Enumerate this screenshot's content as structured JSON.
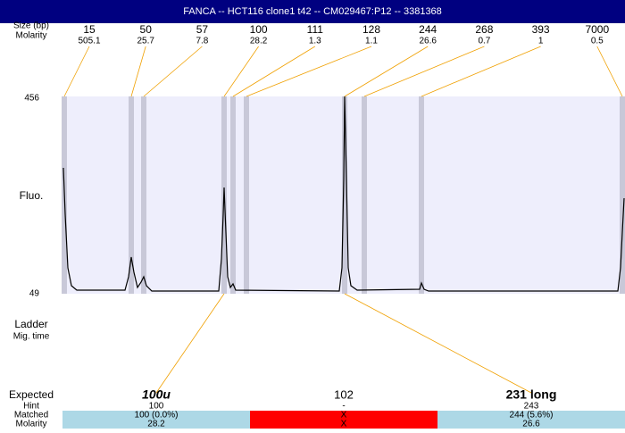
{
  "header": {
    "title": "FANCA -- HCT116 clone1 t42 -- CM029467:P12 -- 3381368"
  },
  "row_labels": {
    "size": "Size (bp)",
    "molarity": "Molarity",
    "fluo": "Fluo.",
    "ladder": "Ladder",
    "mig_time": "Mig. time"
  },
  "y_axis": {
    "top": "456",
    "bottom": "49"
  },
  "peaks": [
    {
      "size": "15",
      "molarity": "505.1"
    },
    {
      "size": "50",
      "molarity": "25.7"
    },
    {
      "size": "57",
      "molarity": "7.8"
    },
    {
      "size": "100",
      "molarity": "28.2"
    },
    {
      "size": "111",
      "molarity": "1.3"
    },
    {
      "size": "128",
      "molarity": "1.1"
    },
    {
      "size": "244",
      "molarity": "26.6"
    },
    {
      "size": "268",
      "molarity": "0.7"
    },
    {
      "size": "393",
      "molarity": "1"
    },
    {
      "size": "7000",
      "molarity": "0.5"
    }
  ],
  "table": {
    "labels": [
      "Expected",
      "Hint",
      "Matched",
      "Molarity"
    ],
    "columns": [
      {
        "expected": "100u",
        "hint": "100",
        "matched": "100 (0.0%)",
        "molarity": "28.2"
      },
      {
        "expected": "102",
        "hint": "-",
        "matched": "X",
        "molarity": "X"
      },
      {
        "expected": "231 long",
        "hint": "243",
        "matched": "244 (5.6%)",
        "molarity": "26.6"
      }
    ]
  }
}
